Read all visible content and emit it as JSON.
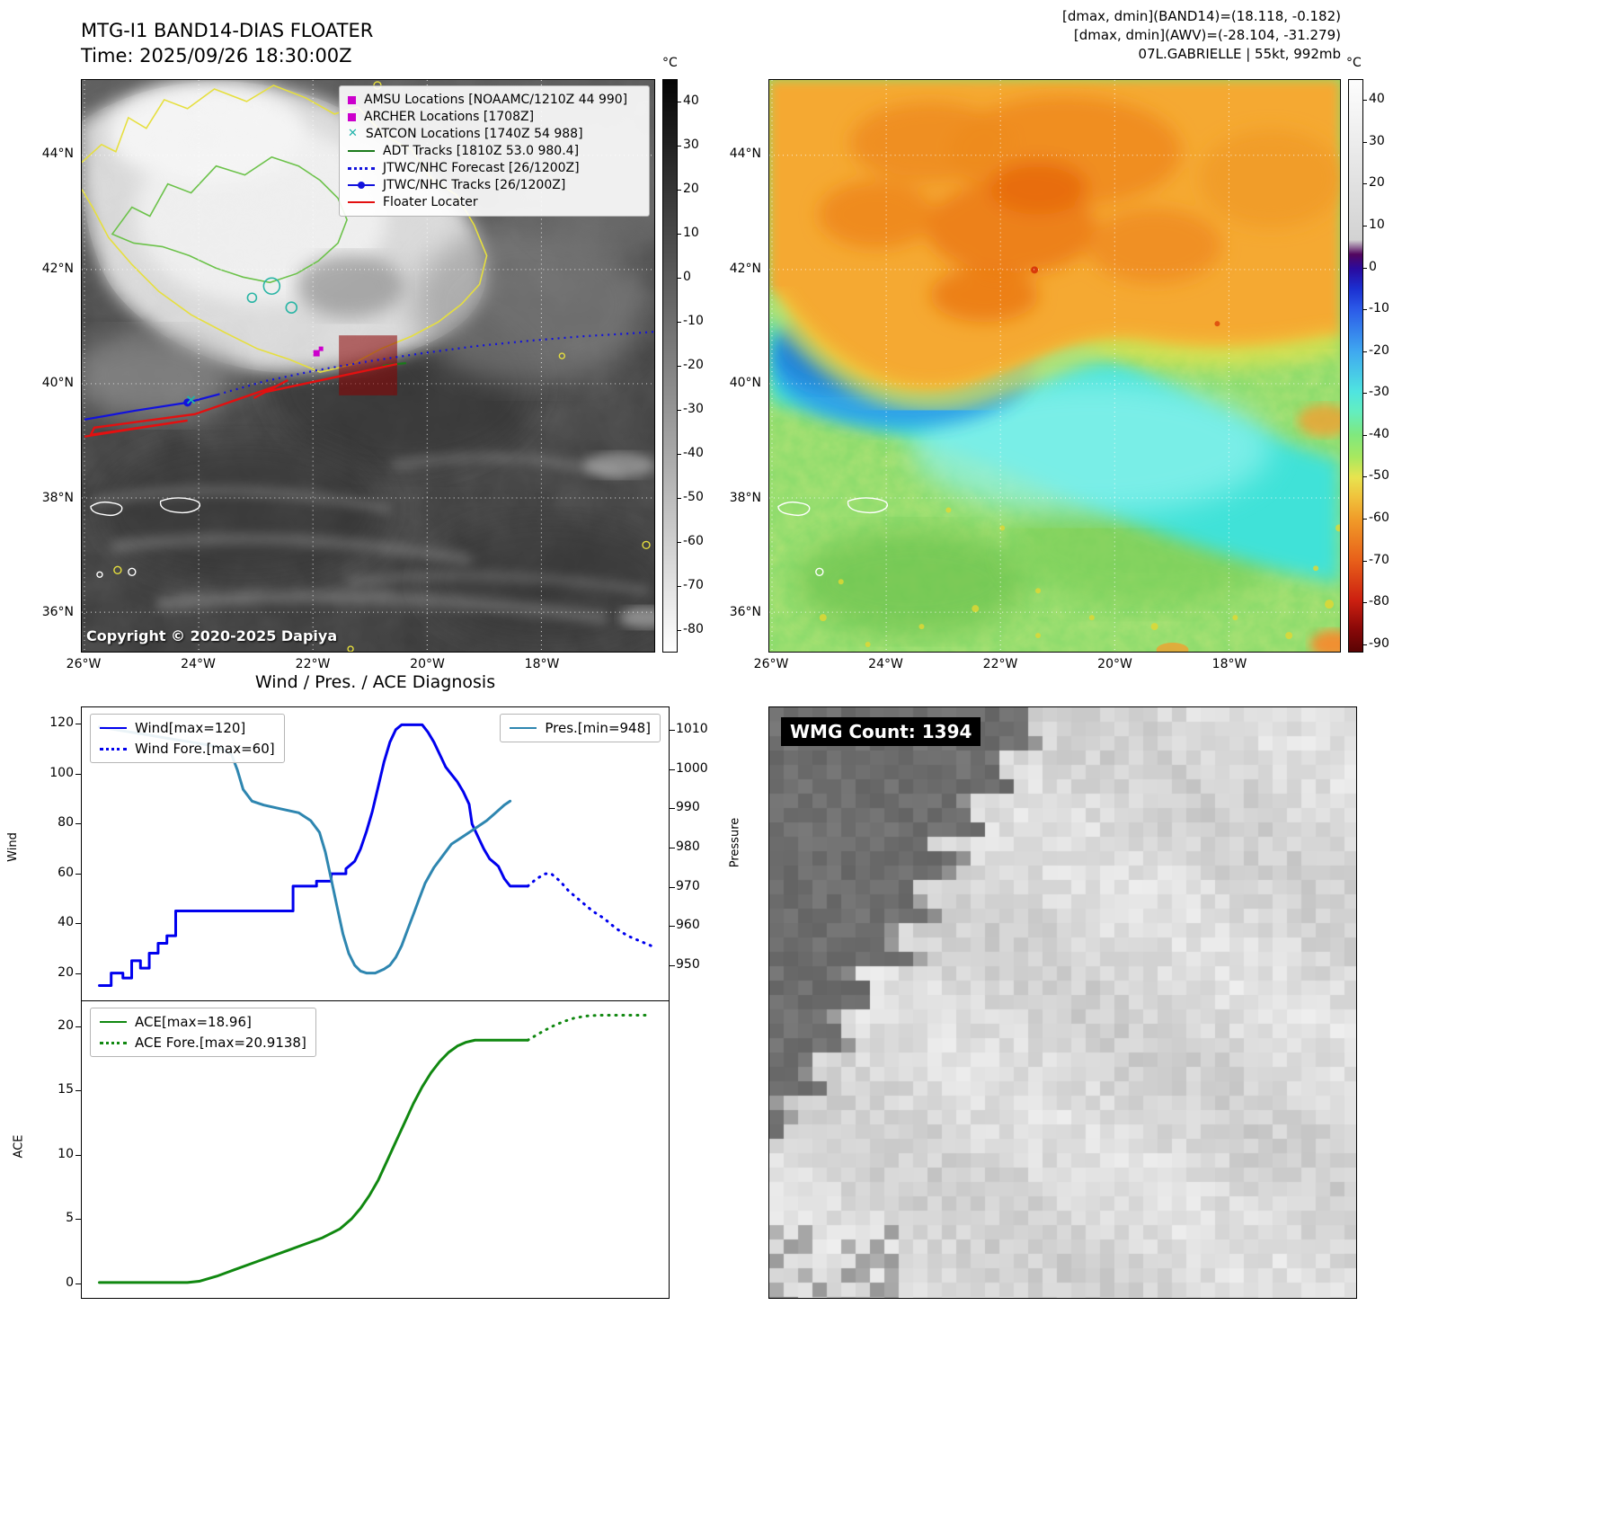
{
  "panels": {
    "band14": {
      "title_line1": "MTG-I1 BAND14-DIAS FLOATER",
      "title_line2": "Time: 2025/09/26 18:30:00Z",
      "copyright": "Copyright © 2020-2025 Dapiya",
      "lat_ticks": [
        "44°N",
        "42°N",
        "40°N",
        "38°N",
        "36°N"
      ],
      "lon_ticks": [
        "26°W",
        "24°W",
        "22°W",
        "20°W",
        "18°W"
      ],
      "colorbar": {
        "unit": "°C",
        "ticks": [
          40,
          30,
          20,
          10,
          0,
          -10,
          -20,
          -30,
          -40,
          -50,
          -60,
          -70,
          -80
        ]
      },
      "legend": [
        {
          "label": "AMSU Locations [NOAAMC/1210Z 44 990]",
          "marker": "square",
          "color": "#cc00cc"
        },
        {
          "label": "ARCHER Locations [1708Z]",
          "marker": "square",
          "color": "#cc00cc"
        },
        {
          "label": "SATCON Locations [1740Z 54 988]",
          "marker": "x",
          "color": "#20b2aa"
        },
        {
          "label": "ADT Tracks [1810Z 53.0 980.4]",
          "marker": "line-solid",
          "color": "#1a7a1a"
        },
        {
          "label": "JTWC/NHC Forecast [26/1200Z]",
          "marker": "line-dotted",
          "color": "#1212dd"
        },
        {
          "label": "JTWC/NHC Tracks [26/1200Z]",
          "marker": "line-dot",
          "color": "#1212dd"
        },
        {
          "label": "Floater Locater",
          "marker": "line-solid",
          "color": "#e31010"
        }
      ],
      "overlays": {
        "jtwc_track": [
          [
            3,
            379
          ],
          [
            60,
            369
          ],
          [
            118,
            360
          ],
          [
            152,
            351
          ]
        ],
        "jtwc_track_dot": [
          118,
          360
        ],
        "jtwc_forecast": [
          [
            152,
            351
          ],
          [
            205,
            336
          ],
          [
            262,
            324
          ],
          [
            320,
            314
          ],
          [
            380,
            305
          ],
          [
            440,
            297
          ],
          [
            500,
            291
          ],
          [
            560,
            286
          ],
          [
            610,
            283
          ],
          [
            639,
            281
          ]
        ],
        "floater_track": [
          [
            3,
            398
          ],
          [
            118,
            380
          ],
          [
            10,
            396
          ],
          [
            14,
            388
          ],
          [
            126,
            373
          ],
          [
            216,
            342
          ],
          [
            192,
            355
          ],
          [
            230,
            335
          ],
          [
            206,
            348
          ],
          [
            352,
            317
          ]
        ],
        "adt_track": [
          [
            336,
            319
          ],
          [
            352,
            317
          ],
          [
            362,
            316
          ]
        ],
        "floater_box": [
          287,
          285,
          65,
          67
        ],
        "amsu_marker": [
          262,
          305
        ],
        "archer_marker": [
          267,
          300
        ],
        "satcon_marker": [
          122,
          357
        ]
      }
    },
    "awv": {
      "header_line1": "[dmax, dmin](BAND14)=(18.118, -0.182)",
      "header_line2": "[dmax, dmin](AWV)=(-28.104, -31.279)",
      "header_line3": "07L.GABRIELLE | 55kt, 992mb",
      "lat_ticks": [
        "44°N",
        "42°N",
        "40°N",
        "38°N",
        "36°N"
      ],
      "lon_ticks": [
        "26°W",
        "24°W",
        "22°W",
        "20°W",
        "18°W"
      ],
      "colorbar": {
        "unit": "°C",
        "ticks": [
          40,
          30,
          20,
          10,
          0,
          -10,
          -20,
          -30,
          -40,
          -50,
          -60,
          -70,
          -80,
          -90
        ]
      }
    },
    "diagnosis": {
      "title": "Wind / Pres. / ACE Diagnosis"
    },
    "wmg": {
      "count_label": "WMG Count: 1394"
    }
  },
  "chart_data": [
    {
      "type": "line",
      "title": "Wind / Pres. / ACE Diagnosis",
      "ylabel_left": "Wind",
      "ylabel_right": "Pressure",
      "ylim_left": [
        9,
        127
      ],
      "ylim_right": [
        941,
        1016
      ],
      "yticks_left": [
        20,
        40,
        60,
        80,
        100,
        120
      ],
      "yticks_right": [
        950,
        960,
        970,
        980,
        990,
        1000,
        1010
      ],
      "xlim": [
        0,
        100
      ],
      "grid": false,
      "legend_position": "upper left / upper right",
      "series": [
        {
          "name": "Wind[max=120]",
          "color": "#0000ee",
          "style": "solid",
          "axis": "left",
          "legend_box": "left",
          "x": [
            3,
            5,
            5,
            7,
            7,
            8.5,
            8.5,
            10,
            10,
            11.5,
            11.5,
            13,
            13,
            14.5,
            14.5,
            16,
            16,
            18,
            18,
            36,
            36,
            40,
            40,
            42.5,
            42.5,
            45,
            45,
            46.5,
            47.5,
            48.5,
            49.5,
            50.5,
            51.5,
            52.5,
            53.5,
            54.5,
            58,
            59,
            60,
            61,
            62,
            63,
            64,
            65,
            66,
            66.5,
            67.5,
            68.5,
            69.5,
            70.5,
            71,
            72,
            73,
            76
          ],
          "y": [
            15,
            15,
            20,
            20,
            18,
            18,
            25,
            25,
            22,
            22,
            28,
            28,
            32,
            32,
            35,
            35,
            45,
            45,
            45,
            45,
            55,
            55,
            57,
            57,
            60,
            60,
            62,
            65,
            70,
            77,
            85,
            95,
            105,
            113,
            118,
            120,
            120,
            117,
            113,
            108,
            103,
            100,
            97,
            93,
            88,
            80,
            75,
            70,
            66,
            64,
            63,
            58,
            55,
            55
          ]
        },
        {
          "name": "Wind Fore.[max=60]",
          "color": "#0000ee",
          "style": "dotted",
          "axis": "left",
          "legend_box": "left",
          "x": [
            76,
            77.5,
            79,
            80,
            81.5,
            83,
            85,
            87,
            89,
            91,
            93,
            95,
            97
          ],
          "y": [
            55,
            58,
            60,
            60,
            57,
            53,
            49,
            45,
            42,
            38,
            35,
            33,
            31
          ]
        },
        {
          "name": "Pres.[min=948]",
          "color": "#2e86b0",
          "style": "solid",
          "axis": "right",
          "legend_box": "right",
          "x": [
            3,
            7,
            11,
            15,
            19,
            23,
            25.5,
            26.5,
            27.5,
            29,
            31,
            34,
            37,
            39,
            40.5,
            41.5,
            42.5,
            43.5,
            44.5,
            45.5,
            46.5,
            47.5,
            48.5,
            50,
            51.5,
            52.5,
            53.5,
            54.5,
            55.5,
            56.5,
            57.5,
            58.5,
            60,
            61.5,
            63,
            65,
            67,
            69,
            70.5,
            72,
            73
          ],
          "y": [
            1011,
            1010,
            1009,
            1008,
            1007,
            1006,
            1004,
            1000,
            995,
            992,
            991,
            990,
            989,
            987,
            984,
            979,
            972,
            965,
            958,
            953,
            950,
            948.5,
            948,
            948,
            949,
            950,
            952,
            955,
            959,
            963,
            967,
            971,
            975,
            978,
            981,
            983,
            985,
            987,
            989,
            991,
            992
          ]
        }
      ]
    },
    {
      "type": "line",
      "ylabel_left": "ACE",
      "ylim_left": [
        -1.2,
        22
      ],
      "yticks_left": [
        0,
        5,
        10,
        15,
        20
      ],
      "xlim": [
        0,
        100
      ],
      "grid": false,
      "series": [
        {
          "name": "ACE[max=18.96]",
          "color": "#108810",
          "style": "solid",
          "axis": "left",
          "legend_box": "left",
          "x": [
            3,
            8,
            13,
            18,
            20,
            23,
            26,
            29,
            32,
            35,
            38,
            41,
            44,
            46,
            47.5,
            49,
            50.5,
            52,
            53.5,
            55,
            56.5,
            58,
            59.5,
            61,
            62.5,
            64,
            65.5,
            67,
            70,
            73,
            76
          ],
          "y": [
            0,
            0,
            0,
            0,
            0.1,
            0.5,
            1.0,
            1.5,
            2.0,
            2.5,
            3.0,
            3.5,
            4.2,
            5.0,
            5.8,
            6.8,
            8.0,
            9.5,
            11.0,
            12.5,
            14.0,
            15.3,
            16.4,
            17.3,
            18.0,
            18.5,
            18.8,
            18.96,
            18.96,
            18.96,
            18.96
          ]
        },
        {
          "name": "ACE Fore.[max=20.9138]",
          "color": "#108810",
          "style": "dotted",
          "axis": "left",
          "legend_box": "left",
          "x": [
            76,
            78,
            80,
            82,
            84,
            86,
            88,
            90,
            93,
            96
          ],
          "y": [
            18.96,
            19.5,
            20.0,
            20.4,
            20.7,
            20.85,
            20.91,
            20.91,
            20.91,
            20.91
          ]
        }
      ]
    }
  ]
}
